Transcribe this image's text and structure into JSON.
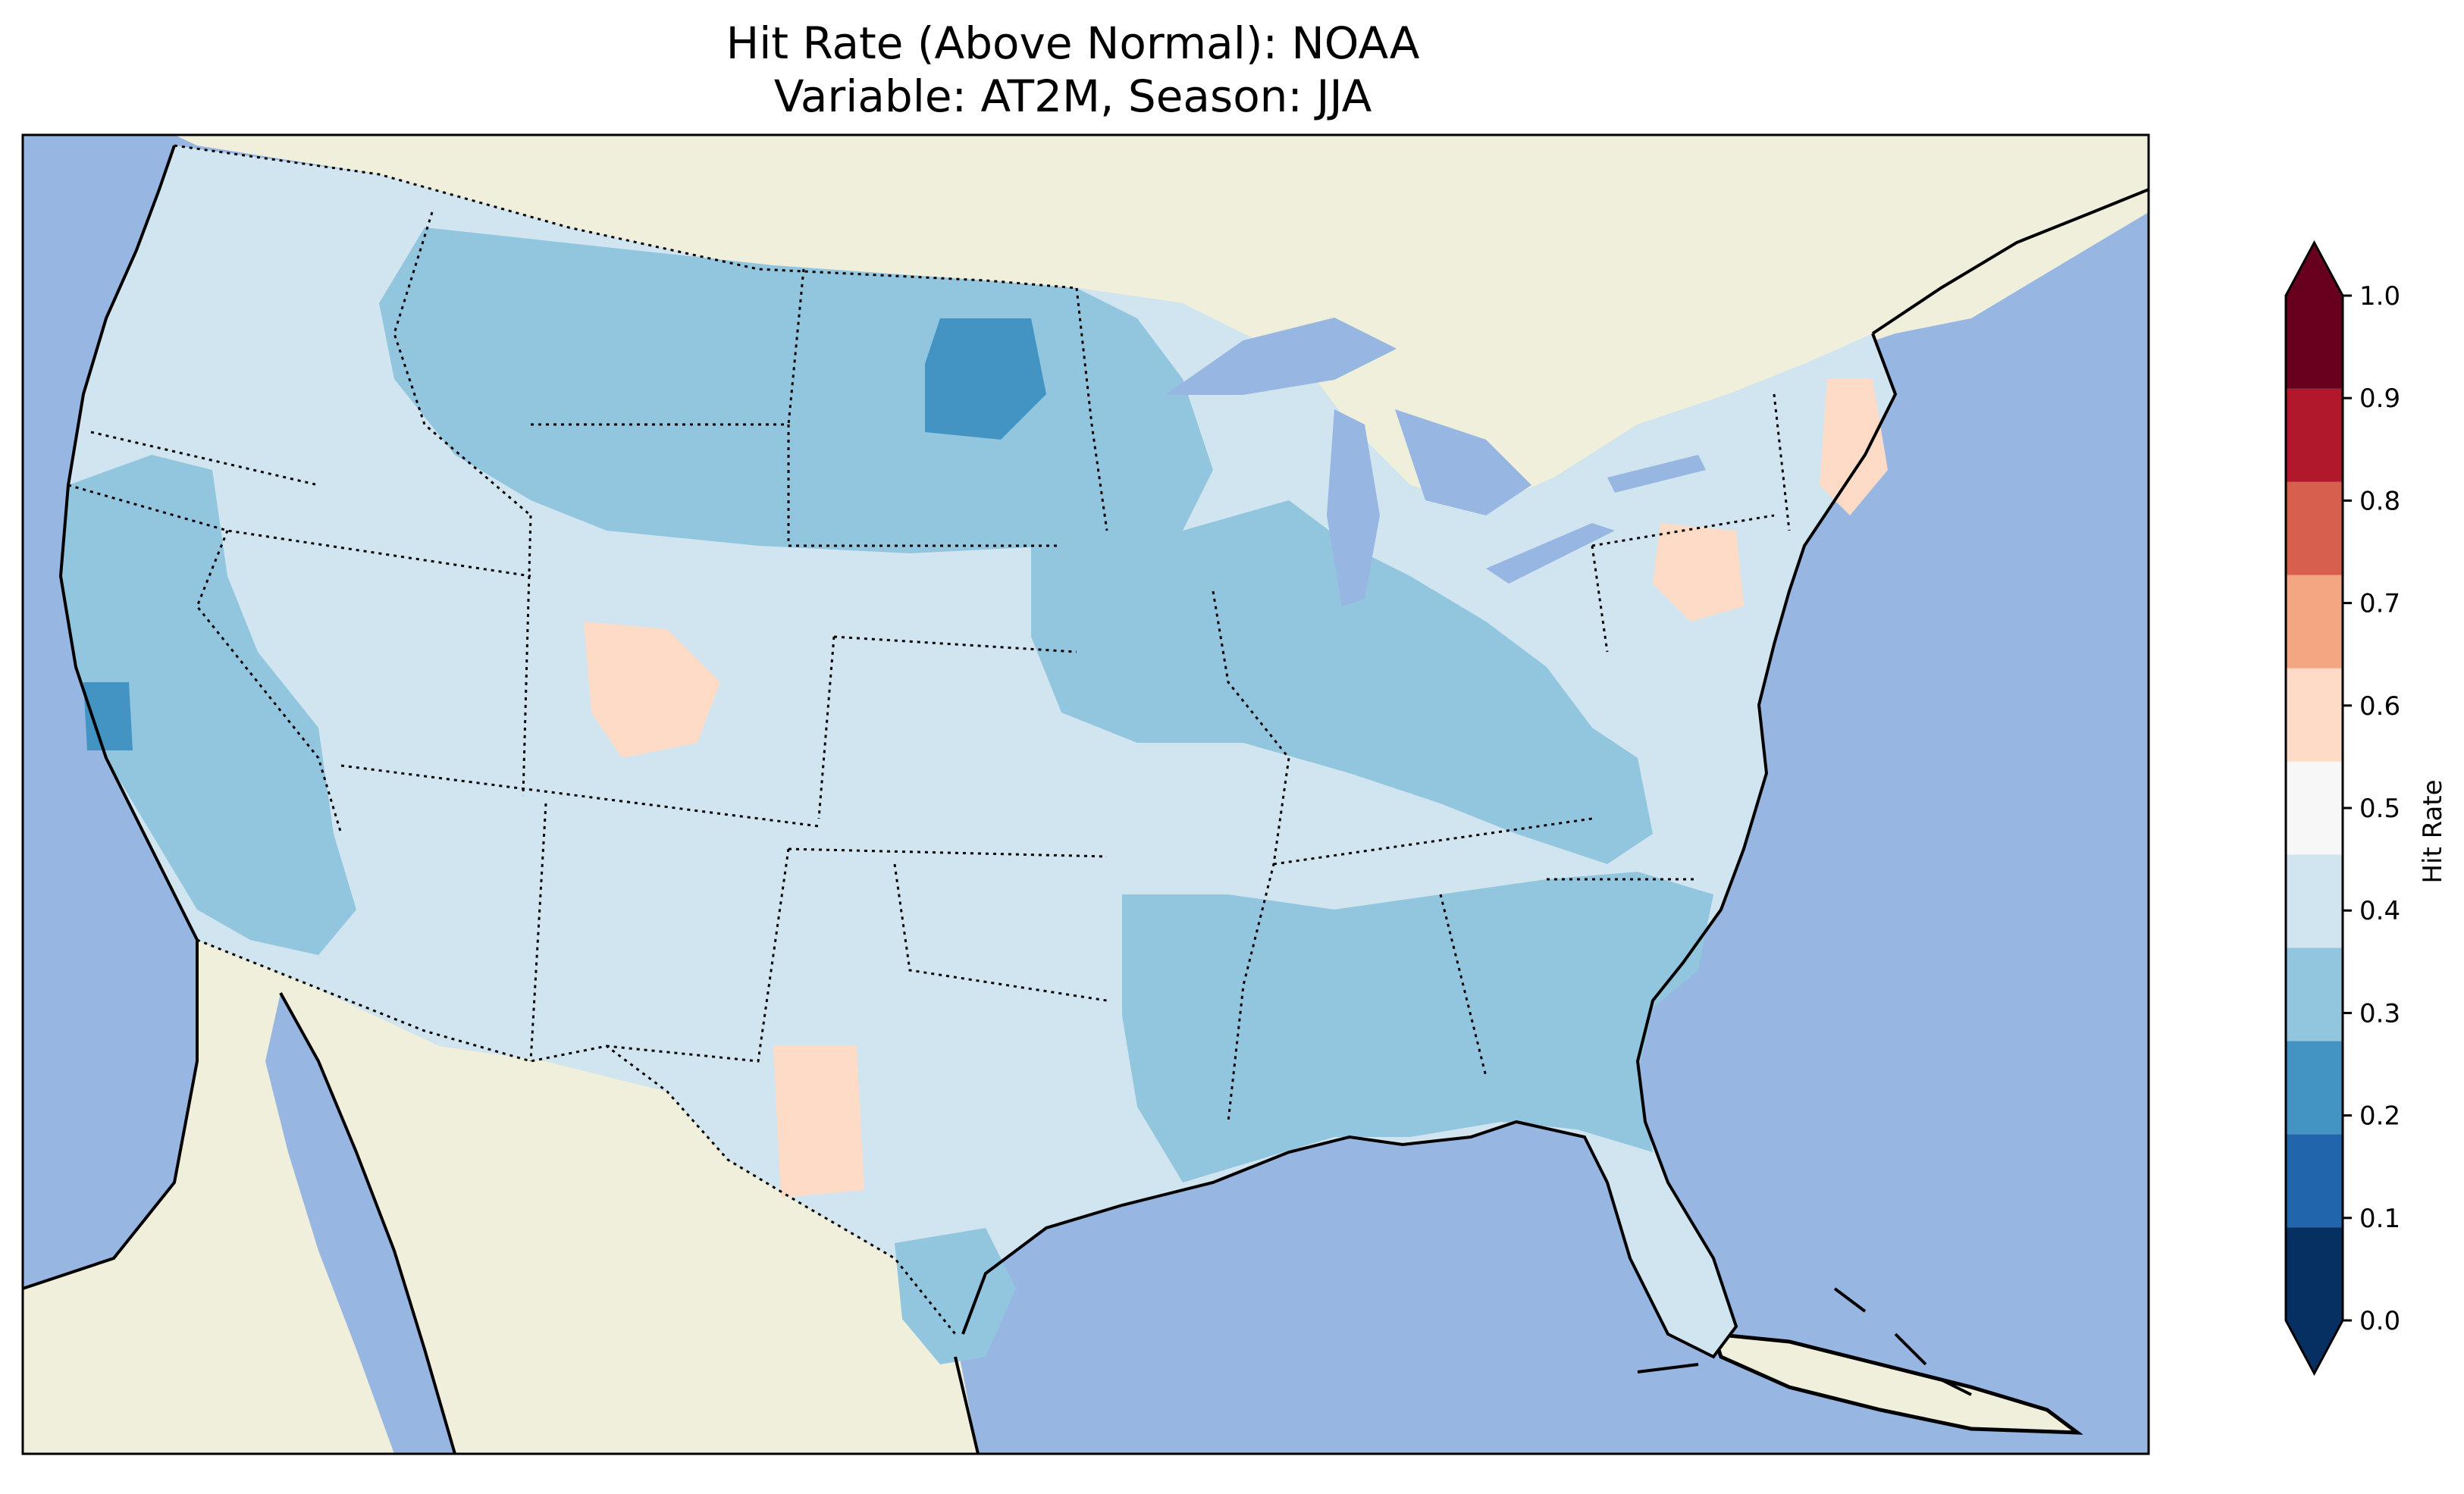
{
  "title": {
    "line1": "Hit Rate (Above Normal): NOAA",
    "line2": "Variable: AT2M, Season: JJA"
  },
  "map": {
    "ocean_color": "#97b6e1",
    "land_color": "#efefdb",
    "coastline_color": "#000000",
    "border_style": "dotted"
  },
  "colorbar": {
    "label": "Hit Rate",
    "ticks": [
      "0.0",
      "0.1",
      "0.2",
      "0.3",
      "0.4",
      "0.5",
      "0.6",
      "0.7",
      "0.8",
      "0.9",
      "1.0"
    ],
    "colors": [
      "#053061",
      "#2166ac",
      "#4393c3",
      "#92c5de",
      "#d1e5f0",
      "#f7f7f7",
      "#fddbc7",
      "#f4a582",
      "#d6604d",
      "#b2182b",
      "#67001f"
    ]
  }
}
